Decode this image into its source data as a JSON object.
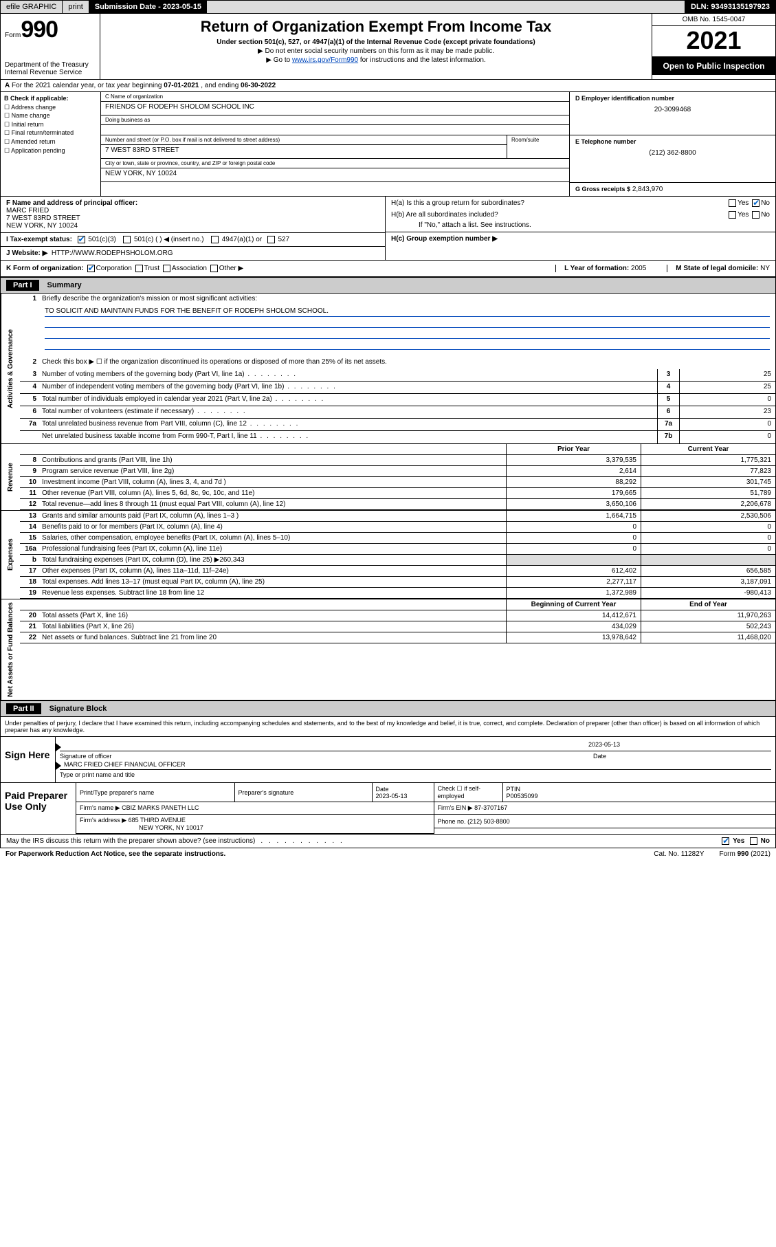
{
  "topbar": {
    "efile": "efile GRAPHIC",
    "print": "print",
    "submission_label": "Submission Date - 2023-05-15",
    "dln": "DLN: 93493135197923"
  },
  "header": {
    "form_word": "Form",
    "form_num": "990",
    "dept": "Department of the Treasury",
    "irs": "Internal Revenue Service",
    "title": "Return of Organization Exempt From Income Tax",
    "sub1": "Under section 501(c), 527, or 4947(a)(1) of the Internal Revenue Code (except private foundations)",
    "sub2": "Do not enter social security numbers on this form as it may be made public.",
    "sub3_pre": "Go to ",
    "sub3_link": "www.irs.gov/Form990",
    "sub3_post": " for instructions and the latest information.",
    "omb": "OMB No. 1545-0047",
    "year": "2021",
    "open": "Open to Public Inspection"
  },
  "row_a": {
    "label": "A",
    "text_pre": "For the 2021 calendar year, or tax year beginning ",
    "begin": "07-01-2021",
    "mid": " , and ending ",
    "end": "06-30-2022"
  },
  "section_b": {
    "label": "B Check if applicable:",
    "opts": [
      "Address change",
      "Name change",
      "Initial return",
      "Final return/terminated",
      "Amended return",
      "Application pending"
    ]
  },
  "section_c": {
    "name_lbl": "C Name of organization",
    "name": "FRIENDS OF RODEPH SHOLOM SCHOOL INC",
    "dba_lbl": "Doing business as",
    "dba": "",
    "addr_lbl": "Number and street (or P.O. box if mail is not delivered to street address)",
    "addr": "7 WEST 83RD STREET",
    "room_lbl": "Room/suite",
    "city_lbl": "City or town, state or province, country, and ZIP or foreign postal code",
    "city": "NEW YORK, NY  10024"
  },
  "section_d": {
    "lbl": "D Employer identification number",
    "val": "20-3099468"
  },
  "section_e": {
    "lbl": "E Telephone number",
    "val": "(212) 362-8800"
  },
  "section_g": {
    "lbl": "G Gross receipts $",
    "val": "2,843,970"
  },
  "section_f": {
    "lbl": "F Name and address of principal officer:",
    "name": "MARC FRIED",
    "addr1": "7 WEST 83RD STREET",
    "addr2": "NEW YORK, NY  10024"
  },
  "section_h": {
    "ha_lbl": "H(a)  Is this a group return for subordinates?",
    "ha_yes": "Yes",
    "ha_no": "No",
    "hb_lbl": "H(b)  Are all subordinates included?",
    "hb_yes": "Yes",
    "hb_no": "No",
    "hb_note": "If \"No,\" attach a list. See instructions.",
    "hc_lbl": "H(c)  Group exemption number ▶"
  },
  "section_i": {
    "lbl": "I     Tax-exempt status:",
    "o1": "501(c)(3)",
    "o2": "501(c) (  ) ◀ (insert no.)",
    "o3": "4947(a)(1) or",
    "o4": "527"
  },
  "section_j": {
    "lbl": "J     Website: ▶",
    "val": "HTTP://WWW.RODEPHSHOLOM.ORG"
  },
  "section_k": {
    "lbl": "K Form of organization:",
    "o1": "Corporation",
    "o2": "Trust",
    "o3": "Association",
    "o4": "Other ▶",
    "l_lbl": "L Year of formation:",
    "l_val": "2005",
    "m_lbl": "M State of legal domicile:",
    "m_val": "NY"
  },
  "part1": {
    "label": "Part I",
    "title": "Summary"
  },
  "summary": {
    "q1_lbl": "Briefly describe the organization's mission or most significant activities:",
    "q1_val": "TO SOLICIT AND MAINTAIN FUNDS FOR THE BENEFIT OF RODEPH SHOLOM SCHOOL.",
    "q2": "Check this box ▶ ☐  if the organization discontinued its operations or disposed of more than 25% of its net assets.",
    "rows_gov": [
      {
        "n": "3",
        "t": "Number of voting members of the governing body (Part VI, line 1a)",
        "bn": "3",
        "bv": "25"
      },
      {
        "n": "4",
        "t": "Number of independent voting members of the governing body (Part VI, line 1b)",
        "bn": "4",
        "bv": "25"
      },
      {
        "n": "5",
        "t": "Total number of individuals employed in calendar year 2021 (Part V, line 2a)",
        "bn": "5",
        "bv": "0"
      },
      {
        "n": "6",
        "t": "Total number of volunteers (estimate if necessary)",
        "bn": "6",
        "bv": "23"
      },
      {
        "n": "7a",
        "t": "Total unrelated business revenue from Part VIII, column (C), line 12",
        "bn": "7a",
        "bv": "0"
      },
      {
        "n": "",
        "t": "Net unrelated business taxable income from Form 990-T, Part I, line 11",
        "bn": "7b",
        "bv": "0"
      }
    ],
    "col_prior": "Prior Year",
    "col_current": "Current Year",
    "rows_rev": [
      {
        "n": "8",
        "t": "Contributions and grants (Part VIII, line 1h)",
        "c1": "3,379,535",
        "c2": "1,775,321"
      },
      {
        "n": "9",
        "t": "Program service revenue (Part VIII, line 2g)",
        "c1": "2,614",
        "c2": "77,823"
      },
      {
        "n": "10",
        "t": "Investment income (Part VIII, column (A), lines 3, 4, and 7d )",
        "c1": "88,292",
        "c2": "301,745"
      },
      {
        "n": "11",
        "t": "Other revenue (Part VIII, column (A), lines 5, 6d, 8c, 9c, 10c, and 11e)",
        "c1": "179,665",
        "c2": "51,789"
      },
      {
        "n": "12",
        "t": "Total revenue—add lines 8 through 11 (must equal Part VIII, column (A), line 12)",
        "c1": "3,650,106",
        "c2": "2,206,678"
      }
    ],
    "rows_exp": [
      {
        "n": "13",
        "t": "Grants and similar amounts paid (Part IX, column (A), lines 1–3 )",
        "c1": "1,664,715",
        "c2": "2,530,506"
      },
      {
        "n": "14",
        "t": "Benefits paid to or for members (Part IX, column (A), line 4)",
        "c1": "0",
        "c2": "0"
      },
      {
        "n": "15",
        "t": "Salaries, other compensation, employee benefits (Part IX, column (A), lines 5–10)",
        "c1": "0",
        "c2": "0"
      },
      {
        "n": "16a",
        "t": "Professional fundraising fees (Part IX, column (A), line 11e)",
        "c1": "0",
        "c2": "0"
      },
      {
        "n": "b",
        "t": "Total fundraising expenses (Part IX, column (D), line 25) ▶260,343",
        "c1": "",
        "c2": "",
        "shade": true
      },
      {
        "n": "17",
        "t": "Other expenses (Part IX, column (A), lines 11a–11d, 11f–24e)",
        "c1": "612,402",
        "c2": "656,585"
      },
      {
        "n": "18",
        "t": "Total expenses. Add lines 13–17 (must equal Part IX, column (A), line 25)",
        "c1": "2,277,117",
        "c2": "3,187,091"
      },
      {
        "n": "19",
        "t": "Revenue less expenses. Subtract line 18 from line 12",
        "c1": "1,372,989",
        "c2": "-980,413"
      }
    ],
    "col_begin": "Beginning of Current Year",
    "col_end": "End of Year",
    "rows_net": [
      {
        "n": "20",
        "t": "Total assets (Part X, line 16)",
        "c1": "14,412,671",
        "c2": "11,970,263"
      },
      {
        "n": "21",
        "t": "Total liabilities (Part X, line 26)",
        "c1": "434,029",
        "c2": "502,243"
      },
      {
        "n": "22",
        "t": "Net assets or fund balances. Subtract line 21 from line 20",
        "c1": "13,978,642",
        "c2": "11,468,020"
      }
    ]
  },
  "part2": {
    "label": "Part II",
    "title": "Signature Block"
  },
  "sig": {
    "declaration": "Under penalties of perjury, I declare that I have examined this return, including accompanying schedules and statements, and to the best of my knowledge and belief, it is true, correct, and complete. Declaration of preparer (other than officer) is based on all information of which preparer has any knowledge.",
    "sign_here": "Sign Here",
    "sig_of_officer": "Signature of officer",
    "date_lbl": "Date",
    "date_val": "2023-05-13",
    "officer": "MARC FRIED  CHIEF FINANCIAL OFFICER",
    "type_name": "Type or print name and title"
  },
  "prep": {
    "label": "Paid Preparer Use Only",
    "h_name": "Print/Type preparer's name",
    "h_sig": "Preparer's signature",
    "h_date": "Date",
    "date_val": "2023-05-13",
    "h_check": "Check ☐ if self-employed",
    "h_ptin": "PTIN",
    "ptin_val": "P00535099",
    "firm_name_lbl": "Firm's name      ▶",
    "firm_name": "CBIZ MARKS PANETH LLC",
    "firm_ein_lbl": "Firm's EIN ▶",
    "firm_ein": "87-3707167",
    "firm_addr_lbl": "Firm's address ▶",
    "firm_addr1": "685 THIRD AVENUE",
    "firm_addr2": "NEW YORK, NY  10017",
    "phone_lbl": "Phone no.",
    "phone": "(212) 503-8800"
  },
  "footer": {
    "discuss": "May the IRS discuss this return with the preparer shown above? (see instructions)",
    "yes": "Yes",
    "no": "No",
    "pra": "For Paperwork Reduction Act Notice, see the separate instructions.",
    "cat": "Cat. No. 11282Y",
    "form": "Form 990 (2021)"
  }
}
